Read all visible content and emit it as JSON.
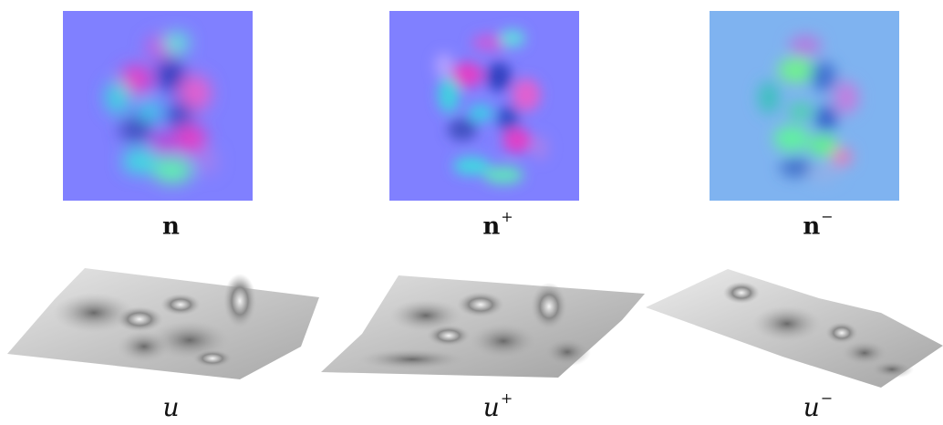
{
  "figure": {
    "panels": [
      {
        "symbol": "n",
        "sup": ""
      },
      {
        "symbol": "n",
        "sup": "+"
      },
      {
        "symbol": "n",
        "sup": "−"
      },
      {
        "symbol": "u",
        "sup": ""
      },
      {
        "symbol": "u",
        "sup": "+"
      },
      {
        "symbol": "u",
        "sup": "−"
      }
    ],
    "colors": {
      "normal_bg": "#8080ff",
      "normal_minus_bg": "#7fb3f0",
      "magenta": "#e040c8",
      "cyan": "#40d8e0",
      "green": "#60f090",
      "blue_dark": "#3040c0",
      "surface_light": "#d8d8d8",
      "surface_dark": "#6a6a6a"
    }
  }
}
